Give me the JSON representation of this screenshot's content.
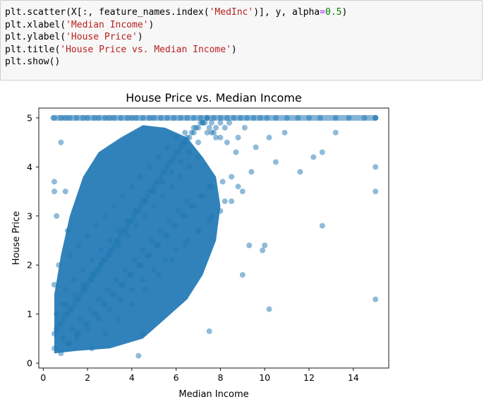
{
  "cell": {
    "code_lines": [
      [
        {
          "t": "plt.scatter(X[:, feature_names.index("
        },
        {
          "t": "'MedInc'",
          "c": "str"
        },
        {
          "t": ")], y, alpha"
        },
        {
          "t": "=",
          "c": "op"
        },
        {
          "t": "0.5",
          "c": "num"
        },
        {
          "t": ")"
        }
      ],
      [
        {
          "t": "plt.xlabel("
        },
        {
          "t": "'Median Income'",
          "c": "str"
        },
        {
          "t": ")"
        }
      ],
      [
        {
          "t": "plt.ylabel("
        },
        {
          "t": "'House Price'",
          "c": "str"
        },
        {
          "t": ")"
        }
      ],
      [
        {
          "t": "plt.title("
        },
        {
          "t": "'House Price vs. Median Income'",
          "c": "str"
        },
        {
          "t": ")"
        }
      ],
      [
        {
          "t": "plt.show()"
        }
      ]
    ]
  },
  "colors": {
    "point": "#1f77b4",
    "cell_background": "#f7f7f7",
    "string_token": "#ba2121",
    "number_token": "#008000"
  },
  "chart_data": {
    "type": "scatter",
    "title": "House Price vs. Median Income",
    "xlabel": "Median Income",
    "ylabel": "House Price",
    "xlim": [
      -0.2,
      15.6
    ],
    "ylim": [
      -0.1,
      5.2
    ],
    "xticks": [
      0,
      2,
      4,
      6,
      8,
      10,
      12,
      14
    ],
    "yticks": [
      0,
      1,
      2,
      3,
      4,
      5
    ],
    "alpha": 0.5,
    "grid": false,
    "legend": "none",
    "points_note_cap": 5.0,
    "series": [
      {
        "x": [
          0.5,
          0.8,
          1.0,
          1.2,
          1.5,
          1.8,
          2.0,
          2.3,
          2.5,
          2.8,
          3.0,
          3.2,
          3.5,
          3.8,
          4.0,
          4.2,
          4.5,
          4.8,
          5.0,
          5.3,
          5.6,
          5.9,
          6.2,
          6.5,
          6.8,
          7.1,
          7.4,
          7.7,
          8.0,
          8.3,
          8.6,
          8.9,
          9.2,
          9.5,
          9.8,
          10.1,
          10.5,
          11.0,
          11.5,
          12.0,
          12.5,
          13.2,
          13.8,
          14.5,
          15.0,
          0.5,
          0.6,
          0.7,
          0.8,
          0.9,
          1.0,
          1.1,
          1.2,
          1.3,
          1.4,
          1.5,
          1.6,
          1.7,
          1.8,
          1.9,
          2.0,
          2.1,
          2.2,
          2.3,
          2.4,
          2.5,
          2.6,
          2.7,
          2.8,
          2.9,
          3.0,
          3.1,
          3.2,
          3.3,
          3.4,
          3.5,
          3.6,
          3.7,
          3.8,
          3.9,
          4.0,
          4.1,
          4.2,
          4.3,
          4.4,
          4.5,
          4.6,
          4.7,
          4.8,
          4.9,
          5.0,
          5.1,
          5.2,
          5.3,
          5.4,
          5.5,
          5.6,
          5.7,
          5.8,
          5.9,
          6.0,
          6.1,
          6.2,
          6.3,
          6.4,
          6.5,
          6.6,
          6.7,
          6.8,
          6.9,
          7.0,
          7.1,
          7.2,
          7.3,
          7.4,
          7.5,
          7.6,
          7.7,
          7.8,
          8.0,
          8.2,
          8.4,
          0.5,
          0.9,
          1.3,
          1.7,
          2.1,
          2.5,
          2.9,
          3.3,
          3.7,
          4.1,
          4.5,
          4.9,
          5.3,
          5.7,
          6.1,
          6.5,
          0.6,
          1.0,
          1.4,
          1.8,
          2.2,
          2.6,
          3.0,
          3.4,
          3.8,
          4.2,
          4.6,
          5.0,
          5.4,
          5.8,
          6.2,
          6.6,
          7.0,
          1.1,
          1.5,
          1.9,
          2.3,
          2.7,
          3.1,
          3.5,
          3.9,
          4.3,
          4.7,
          5.1,
          5.5,
          5.9,
          6.3,
          6.7,
          7.1,
          7.5,
          0.7,
          1.2,
          1.6,
          2.0,
          2.4,
          2.8,
          3.2,
          3.6,
          4.0,
          4.4,
          4.8,
          5.2,
          5.6,
          6.0,
          6.4,
          6.8,
          7.2,
          7.6,
          8.0,
          0.8,
          1.2,
          1.6,
          2.0,
          2.4,
          2.8,
          3.2,
          3.6,
          4.0,
          4.4,
          4.8,
          5.2,
          5.6,
          6.0,
          6.4,
          6.8,
          7.2,
          7.6,
          8.1,
          8.5,
          1.0,
          1.4,
          1.8,
          2.2,
          2.6,
          3.0,
          3.4,
          3.8,
          4.2,
          4.6,
          5.0,
          5.4,
          5.8,
          6.2,
          6.6,
          7.0,
          7.4,
          7.8,
          8.3,
          8.7,
          1.5,
          2.0,
          2.5,
          3.0,
          3.5,
          4.0,
          4.5,
          5.0,
          5.5,
          6.0,
          6.5,
          7.0,
          7.5,
          8.0,
          8.5,
          9.0,
          2.2,
          2.8,
          3.4,
          4.0,
          4.6,
          5.2,
          5.8,
          6.4,
          7.0,
          7.6,
          8.2,
          8.8,
          9.4,
          8.8,
          9.1,
          9.3,
          9.6,
          9.9,
          10.2,
          10.5,
          10.9,
          11.6,
          12.2,
          12.6,
          13.2,
          15.0,
          15.0,
          15.0,
          15.0,
          0.5,
          0.5,
          0.6,
          0.5,
          1.0,
          1.1,
          0.8,
          0.9,
          4.3,
          4.5,
          7.5,
          9.0,
          10.0,
          10.2,
          12.6
        ],
        "y": [
          5.0,
          5.0,
          5.0,
          5.0,
          5.0,
          5.0,
          5.0,
          5.0,
          5.0,
          5.0,
          5.0,
          5.0,
          5.0,
          5.0,
          5.0,
          5.0,
          5.0,
          5.0,
          5.0,
          5.0,
          5.0,
          5.0,
          5.0,
          5.0,
          5.0,
          5.0,
          5.0,
          5.0,
          5.0,
          5.0,
          5.0,
          5.0,
          5.0,
          5.0,
          5.0,
          5.0,
          5.0,
          5.0,
          5.0,
          5.0,
          5.0,
          5.0,
          5.0,
          5.0,
          5.0,
          0.6,
          0.7,
          0.8,
          0.8,
          0.9,
          1.0,
          1.0,
          1.1,
          1.1,
          1.2,
          1.3,
          1.3,
          1.4,
          1.5,
          1.5,
          1.6,
          1.7,
          1.7,
          1.8,
          1.9,
          1.9,
          2.0,
          2.1,
          2.1,
          2.2,
          2.3,
          2.3,
          2.4,
          2.5,
          2.5,
          2.6,
          2.7,
          2.7,
          2.8,
          2.9,
          2.9,
          3.0,
          3.1,
          3.1,
          3.2,
          3.3,
          3.3,
          3.4,
          3.5,
          3.5,
          3.6,
          3.7,
          3.7,
          3.8,
          3.9,
          3.9,
          4.0,
          4.1,
          4.1,
          4.2,
          4.3,
          4.3,
          4.4,
          4.5,
          4.5,
          4.6,
          4.6,
          4.7,
          4.7,
          4.8,
          4.8,
          4.9,
          4.9,
          4.9,
          5.0,
          4.8,
          4.9,
          4.7,
          4.8,
          4.9,
          4.8,
          4.9,
          0.3,
          0.5,
          0.7,
          0.9,
          1.1,
          1.3,
          1.5,
          1.7,
          1.9,
          2.1,
          2.3,
          2.5,
          2.7,
          2.9,
          3.1,
          3.3,
          1.0,
          1.2,
          1.4,
          1.6,
          1.8,
          2.0,
          2.2,
          2.4,
          2.6,
          2.8,
          3.0,
          3.2,
          3.4,
          3.6,
          3.8,
          4.0,
          4.2,
          0.4,
          0.6,
          0.8,
          1.0,
          1.2,
          1.4,
          1.6,
          1.8,
          2.0,
          2.2,
          2.4,
          2.6,
          2.8,
          3.0,
          3.2,
          3.4,
          3.6,
          2.0,
          2.2,
          2.4,
          2.6,
          2.8,
          3.0,
          3.2,
          3.4,
          3.6,
          3.8,
          4.0,
          4.2,
          4.4,
          4.6,
          4.7,
          4.8,
          4.9,
          4.7,
          4.6,
          0.2,
          0.4,
          0.6,
          0.8,
          1.0,
          1.2,
          1.4,
          1.6,
          1.8,
          2.0,
          2.2,
          2.4,
          2.6,
          2.8,
          3.0,
          3.2,
          3.4,
          3.6,
          3.7,
          3.8,
          1.5,
          1.7,
          1.9,
          2.1,
          2.3,
          2.5,
          2.7,
          2.9,
          3.1,
          3.3,
          3.5,
          3.7,
          3.9,
          4.1,
          4.3,
          4.5,
          4.7,
          4.6,
          4.5,
          4.3,
          0.5,
          0.7,
          0.9,
          1.1,
          1.3,
          1.5,
          1.7,
          1.9,
          2.1,
          2.3,
          2.5,
          2.7,
          2.9,
          3.1,
          3.3,
          3.5,
          0.3,
          0.6,
          0.9,
          1.2,
          1.5,
          1.8,
          2.1,
          2.4,
          2.7,
          3.0,
          3.3,
          3.6,
          3.9,
          4.6,
          4.8,
          2.4,
          4.4,
          2.3,
          4.6,
          4.1,
          4.7,
          3.9,
          4.2,
          4.3,
          4.7,
          4.0,
          3.5,
          1.3,
          5.0,
          3.7,
          3.5,
          3.0,
          1.6,
          3.5,
          2.7,
          4.5,
          1.2,
          0.15,
          0.6,
          0.65,
          1.8,
          2.4,
          1.1,
          2.8
        ]
      }
    ]
  }
}
